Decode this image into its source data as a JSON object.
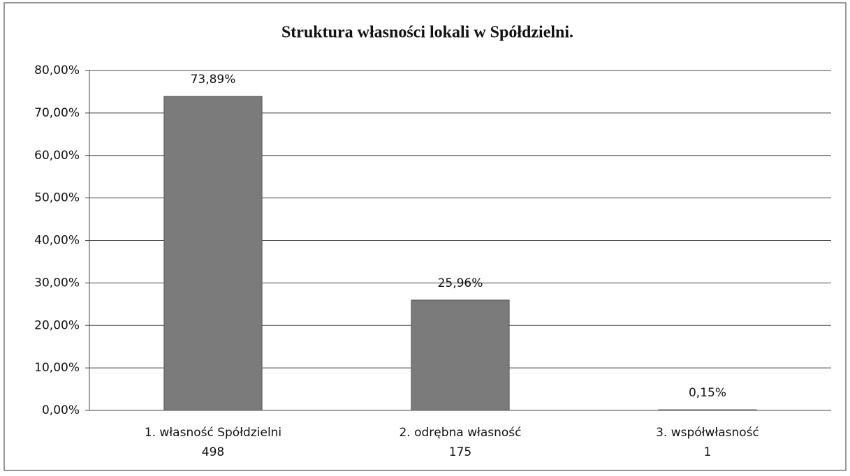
{
  "chart_data": {
    "type": "bar",
    "title": "Struktura własności lokali w Spółdzielni.",
    "categories": [
      "1. własność Spółdzielni",
      "2. odrębna własność",
      "3. współwłasność"
    ],
    "category_counts": [
      498,
      175,
      1
    ],
    "values": [
      73.89,
      25.96,
      0.15
    ],
    "value_labels": [
      "73,89%",
      "25,96%",
      "0,15%"
    ],
    "color": "#7b7b7b",
    "ylim": [
      0,
      80
    ],
    "yticks": [
      {
        "value": 0,
        "label": "0,00%"
      },
      {
        "value": 10,
        "label": "10,00%"
      },
      {
        "value": 20,
        "label": "20,00%"
      },
      {
        "value": 30,
        "label": "30,00%"
      },
      {
        "value": 40,
        "label": "40,00%"
      },
      {
        "value": 50,
        "label": "50,00%"
      },
      {
        "value": 60,
        "label": "60,00%"
      },
      {
        "value": 70,
        "label": "70,00%"
      },
      {
        "value": 80,
        "label": "80,00%"
      }
    ],
    "grid": true
  }
}
